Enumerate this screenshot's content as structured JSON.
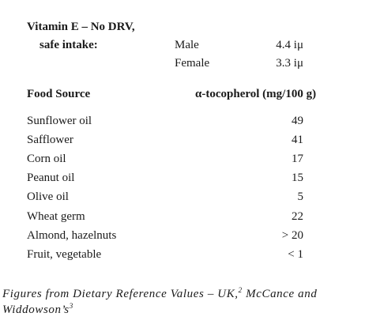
{
  "header": {
    "line1": "Vitamin E – No DRV,",
    "line2": "safe intake:"
  },
  "intake": [
    {
      "sex": "Male",
      "value": "4.4 iμ"
    },
    {
      "sex": "Female",
      "value": "3.3 iμ"
    }
  ],
  "table": {
    "col_source": "Food Source",
    "col_value": "α-tocopherol (mg/100 g)",
    "rows": [
      {
        "food": "Sunflower oil",
        "value": "49"
      },
      {
        "food": "Safflower",
        "value": "41"
      },
      {
        "food": "Corn oil",
        "value": "17"
      },
      {
        "food": "Peanut oil",
        "value": "15"
      },
      {
        "food": "Olive oil",
        "value": "5"
      },
      {
        "food": "Wheat germ",
        "value": "22"
      },
      {
        "food": "Almond, hazelnuts",
        "value": "> 20"
      },
      {
        "food": "Fruit, vegetable",
        "value": "< 1"
      }
    ]
  },
  "caption": {
    "part1": "Figures from Dietary Reference Values – UK,",
    "ref1": "2",
    "part2": " McCance and Widdowson’s",
    "ref2": "3"
  }
}
